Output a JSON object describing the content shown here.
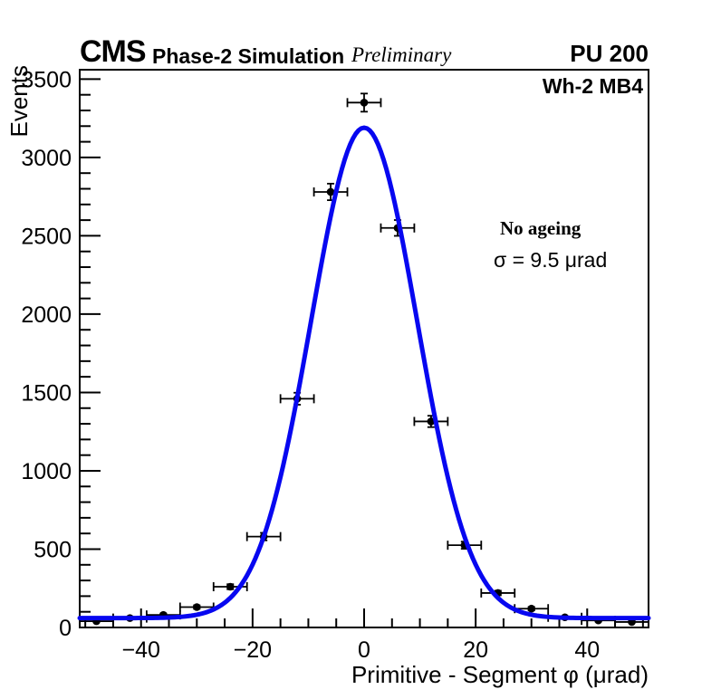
{
  "header": {
    "experiment": "CMS",
    "program": "Phase-2 Simulation",
    "status": "Preliminary",
    "pileup": "PU 200"
  },
  "plot_labels": {
    "corner": "Wh-2 MB4",
    "annotation_title": "No ageing",
    "annotation_sigma": "σ = 9.5 μrad"
  },
  "chart_data": {
    "type": "scatter",
    "title": "",
    "xlabel": "Primitive - Segment φ (μrad)",
    "ylabel": "Events",
    "xlim": [
      -51,
      51
    ],
    "ylim": [
      0,
      3560
    ],
    "x_major_ticks": [
      -40,
      -20,
      0,
      20,
      40
    ],
    "x_minor_step": 5,
    "y_major_ticks": [
      0,
      500,
      1000,
      1500,
      2000,
      2500,
      3000,
      3500
    ],
    "y_minor_step": 100,
    "grid": false,
    "legend": "none",
    "frame_color": "#000000",
    "series": [
      {
        "name": "data-points",
        "type": "scatter",
        "marker": "filled-circle",
        "color": "#000000",
        "x": [
          -48,
          -42,
          -36,
          -30,
          -24,
          -18,
          -12,
          -6,
          0,
          6,
          12,
          18,
          24,
          30,
          36,
          42,
          48
        ],
        "y": [
          40,
          60,
          80,
          130,
          260,
          580,
          1460,
          2780,
          3350,
          2550,
          1315,
          525,
          220,
          120,
          65,
          45,
          35
        ],
        "xerr": 3,
        "yerr": "sqrt"
      },
      {
        "name": "gaussian-fit",
        "type": "gaussian-curve",
        "color": "#0707f0",
        "amplitude": 3130,
        "mean": 0,
        "sigma": 9.5,
        "baseline": 60,
        "line_width": 5
      }
    ]
  }
}
